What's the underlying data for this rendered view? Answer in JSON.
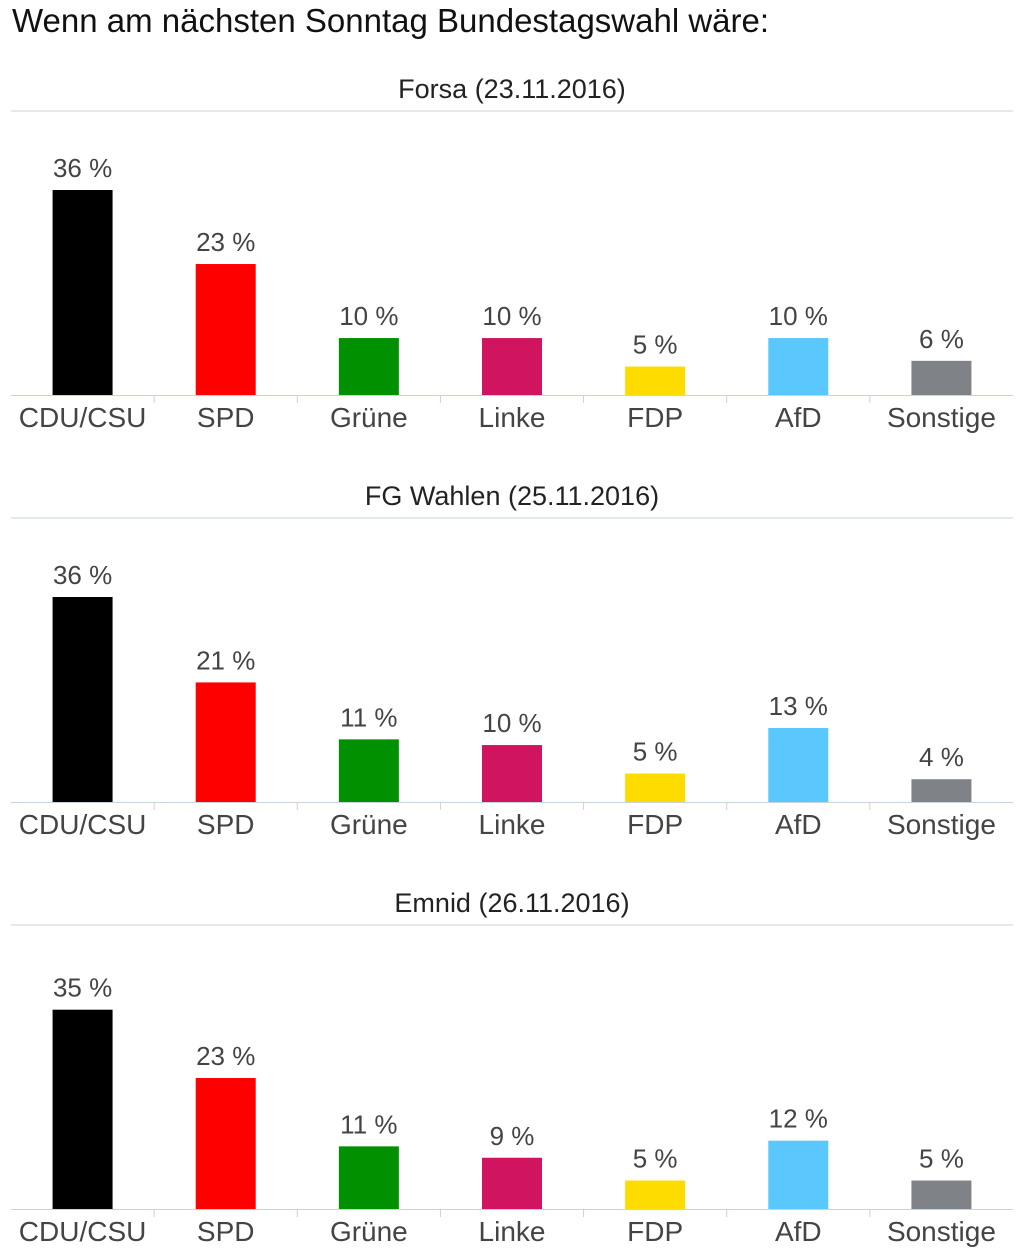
{
  "header": {
    "title": "Wenn am nächsten Sonntag Bundestagswahl wäre:"
  },
  "colors": {
    "CDU/CSU": "#000000",
    "SPD": "#ff0000",
    "Grüne": "#009000",
    "Linke": "#d0145f",
    "FDP": "#ffdc00",
    "AfD": "#5bc8fd",
    "Sonstige": "#7f8388",
    "divider": "#c7d3dd",
    "axis": "#c7d3dd"
  },
  "chart_data": [
    {
      "type": "bar",
      "title": "Forsa (23.11.2016)",
      "categories": [
        "CDU/CSU",
        "SPD",
        "Grüne",
        "Linke",
        "FDP",
        "AfD",
        "Sonstige"
      ],
      "values": [
        36,
        23,
        10,
        10,
        5,
        10,
        6
      ],
      "value_suffix": " %",
      "ylim": [
        0,
        36
      ],
      "grid": false
    },
    {
      "type": "bar",
      "title": "FG Wahlen (25.11.2016)",
      "categories": [
        "CDU/CSU",
        "SPD",
        "Grüne",
        "Linke",
        "FDP",
        "AfD",
        "Sonstige"
      ],
      "values": [
        36,
        21,
        11,
        10,
        5,
        13,
        4
      ],
      "value_suffix": " %",
      "ylim": [
        0,
        36
      ],
      "grid": false
    },
    {
      "type": "bar",
      "title": "Emnid (26.11.2016)",
      "categories": [
        "CDU/CSU",
        "SPD",
        "Grüne",
        "Linke",
        "FDP",
        "AfD",
        "Sonstige"
      ],
      "values": [
        35,
        23,
        11,
        9,
        5,
        12,
        5
      ],
      "value_suffix": " %",
      "ylim": [
        0,
        36
      ],
      "grid": false
    }
  ]
}
